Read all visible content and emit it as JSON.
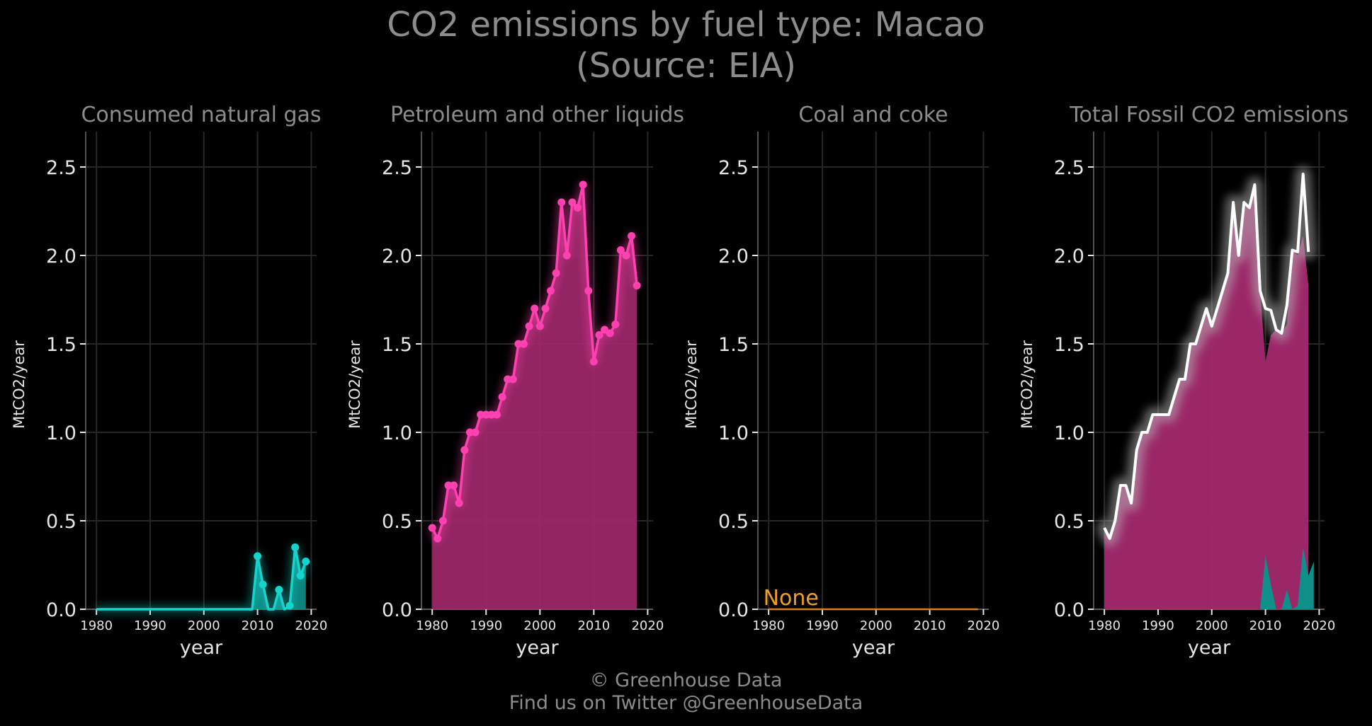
{
  "title_line1": "CO2 emissions by fuel type: Macao",
  "title_line2": "(Source: EIA)",
  "footer_line1": "© Greenhouse Data",
  "footer_line2": "Find us on Twitter @GreenhouseData",
  "colors": {
    "background": "#000000",
    "grid": "#262626",
    "text_muted": "#8c8c8c",
    "text_light": "#e6e6e6",
    "gas": "#15d4cc",
    "gas_fill": "#0e8f8a",
    "petroleum": "#ff40b0",
    "petroleum_fill": "#a3296e",
    "coal": "#d8801c",
    "none_label": "#f0a020",
    "total_line": "#ffffff"
  },
  "chart_data": [
    {
      "type": "area",
      "title": "Consumed natural gas",
      "xlabel": "year",
      "ylabel": "MtCO2/year",
      "xlim": [
        1978,
        2021
      ],
      "ylim": [
        0,
        2.7
      ],
      "xticks": [
        "1980",
        "1990",
        "2000",
        "2010",
        "2020"
      ],
      "yticks": [
        "0.0",
        "0.5",
        "1.0",
        "1.5",
        "2.0",
        "2.5"
      ],
      "grid": true,
      "series": [
        {
          "x": [
            1980,
            1981,
            1982,
            1983,
            1984,
            1985,
            1986,
            1987,
            1988,
            1989,
            1990,
            1991,
            1992,
            1993,
            1994,
            1995,
            1996,
            1997,
            1998,
            1999,
            2000,
            2001,
            2002,
            2003,
            2004,
            2005,
            2006,
            2007,
            2008,
            2009,
            2010,
            2011,
            2012,
            2013,
            2014,
            2015,
            2016,
            2017,
            2018,
            2019
          ],
          "values": [
            0,
            0,
            0,
            0,
            0,
            0,
            0,
            0,
            0,
            0,
            0,
            0,
            0,
            0,
            0,
            0,
            0,
            0,
            0,
            0,
            0,
            0,
            0,
            0,
            0,
            0,
            0,
            0,
            0,
            0,
            0.3,
            0.14,
            0,
            0,
            0.11,
            0,
            0.02,
            0.35,
            0.19,
            0.27
          ]
        }
      ]
    },
    {
      "type": "area",
      "title": "Petroleum and other liquids",
      "xlabel": "year",
      "ylabel": "MtCO2/year",
      "xlim": [
        1978,
        2021
      ],
      "ylim": [
        0,
        2.7
      ],
      "xticks": [
        "1980",
        "1990",
        "2000",
        "2010",
        "2020"
      ],
      "yticks": [
        "0.0",
        "0.5",
        "1.0",
        "1.5",
        "2.0",
        "2.5"
      ],
      "grid": true,
      "series": [
        {
          "x": [
            1980,
            1981,
            1982,
            1983,
            1984,
            1985,
            1986,
            1987,
            1988,
            1989,
            1990,
            1991,
            1992,
            1993,
            1994,
            1995,
            1996,
            1997,
            1998,
            1999,
            2000,
            2001,
            2002,
            2003,
            2004,
            2005,
            2006,
            2007,
            2008,
            2009,
            2010,
            2011,
            2012,
            2013,
            2014,
            2015,
            2016,
            2017,
            2018
          ],
          "values": [
            0.46,
            0.4,
            0.5,
            0.7,
            0.7,
            0.6,
            0.9,
            1.0,
            1.0,
            1.1,
            1.1,
            1.1,
            1.1,
            1.2,
            1.3,
            1.3,
            1.5,
            1.5,
            1.6,
            1.7,
            1.6,
            1.7,
            1.8,
            1.9,
            2.3,
            2.0,
            2.3,
            2.27,
            2.4,
            1.8,
            1.4,
            1.55,
            1.58,
            1.56,
            1.61,
            2.03,
            2.0,
            2.11,
            1.83
          ]
        }
      ]
    },
    {
      "type": "line",
      "title": "Coal and coke",
      "xlabel": "year",
      "ylabel": "MtCO2/year",
      "xlim": [
        1978,
        2021
      ],
      "ylim": [
        0,
        2.7
      ],
      "xticks": [
        "1980",
        "1990",
        "2000",
        "2010",
        "2020"
      ],
      "yticks": [
        "0.0",
        "0.5",
        "1.0",
        "1.5",
        "2.0",
        "2.5"
      ],
      "grid": true,
      "annotation": "None",
      "series": [
        {
          "x": [
            1980,
            2019
          ],
          "values": [
            0,
            0
          ]
        }
      ]
    },
    {
      "type": "area",
      "title": "Total Fossil CO2 emissions",
      "xlabel": "year",
      "ylabel": "MtCO2/year",
      "xlim": [
        1978,
        2021
      ],
      "ylim": [
        0,
        2.7
      ],
      "xticks": [
        "1980",
        "1990",
        "2000",
        "2010",
        "2020"
      ],
      "yticks": [
        "0.0",
        "0.5",
        "1.0",
        "1.5",
        "2.0",
        "2.5"
      ],
      "grid": true,
      "series": [
        {
          "x": [
            1980,
            1981,
            1982,
            1983,
            1984,
            1985,
            1986,
            1987,
            1988,
            1989,
            1990,
            1991,
            1992,
            1993,
            1994,
            1995,
            1996,
            1997,
            1998,
            1999,
            2000,
            2001,
            2002,
            2003,
            2004,
            2005,
            2006,
            2007,
            2008,
            2009,
            2010,
            2011,
            2012,
            2013,
            2014,
            2015,
            2016,
            2017,
            2018
          ],
          "values": [
            0.46,
            0.4,
            0.5,
            0.7,
            0.7,
            0.6,
            0.9,
            1.0,
            1.0,
            1.1,
            1.1,
            1.1,
            1.1,
            1.2,
            1.3,
            1.3,
            1.5,
            1.5,
            1.6,
            1.7,
            1.6,
            1.7,
            1.8,
            1.9,
            2.3,
            2.0,
            2.3,
            2.27,
            2.4,
            1.8,
            1.7,
            1.69,
            1.58,
            1.56,
            1.72,
            2.03,
            2.02,
            2.46,
            2.02
          ]
        }
      ]
    }
  ]
}
